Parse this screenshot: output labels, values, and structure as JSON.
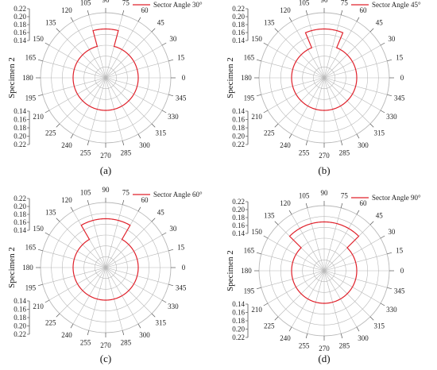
{
  "chart_data": [
    {
      "type": "polar-line",
      "panel_label": "(a)",
      "side_label": "Specimen  2",
      "legend": "Sector Angle 30°",
      "angle_ticks": [
        "0",
        "15",
        "30",
        "45",
        "60",
        "75",
        "90",
        "105",
        "120",
        "135",
        "150",
        "165",
        "180",
        "195",
        "210",
        "225",
        "240",
        "255",
        "270",
        "285",
        "300",
        "315",
        "330",
        "345"
      ],
      "r_tick_labels": [
        "0.14",
        "0.16",
        "0.18",
        "0.20",
        "0.22"
      ],
      "r_range": [
        0.14,
        0.22
      ],
      "series": [
        {
          "color": "#e0202a",
          "points": [
            {
              "theta": 0,
              "r": 0.18
            },
            {
              "theta": 75,
              "r": 0.18
            },
            {
              "theta": 75,
              "r": 0.2
            },
            {
              "theta": 105,
              "r": 0.2
            },
            {
              "theta": 105,
              "r": 0.18
            },
            {
              "theta": 360,
              "r": 0.18
            }
          ]
        }
      ]
    },
    {
      "type": "polar-line",
      "panel_label": "(b)",
      "side_label": "Specimen  2",
      "legend": "Sector Angle 45°",
      "angle_ticks": [
        "0",
        "15",
        "30",
        "45",
        "60",
        "75",
        "90",
        "105",
        "120",
        "135",
        "150",
        "165",
        "180",
        "195",
        "210",
        "225",
        "240",
        "255",
        "270",
        "285",
        "300",
        "315",
        "330",
        "345"
      ],
      "r_tick_labels": [
        "0.14",
        "0.16",
        "0.18",
        "0.20",
        "0.22"
      ],
      "r_range": [
        0.14,
        0.22
      ],
      "series": [
        {
          "color": "#e0202a",
          "points": [
            {
              "theta": 0,
              "r": 0.18
            },
            {
              "theta": 67.5,
              "r": 0.18
            },
            {
              "theta": 67.5,
              "r": 0.2
            },
            {
              "theta": 112.5,
              "r": 0.2
            },
            {
              "theta": 112.5,
              "r": 0.18
            },
            {
              "theta": 360,
              "r": 0.18
            }
          ]
        }
      ]
    },
    {
      "type": "polar-line",
      "panel_label": "(c)",
      "side_label": "Specimen  2",
      "legend": "Sector Angle 60°",
      "angle_ticks": [
        "0",
        "15",
        "30",
        "45",
        "60",
        "75",
        "90",
        "105",
        "120",
        "135",
        "150",
        "165",
        "180",
        "195",
        "210",
        "225",
        "240",
        "255",
        "270",
        "285",
        "300",
        "315",
        "330",
        "345"
      ],
      "r_tick_labels": [
        "0.14",
        "0.16",
        "0.18",
        "0.20",
        "0.22"
      ],
      "r_range": [
        0.14,
        0.22
      ],
      "series": [
        {
          "color": "#e0202a",
          "points": [
            {
              "theta": 0,
              "r": 0.18
            },
            {
              "theta": 60,
              "r": 0.18
            },
            {
              "theta": 60,
              "r": 0.2
            },
            {
              "theta": 120,
              "r": 0.2
            },
            {
              "theta": 120,
              "r": 0.18
            },
            {
              "theta": 360,
              "r": 0.18
            }
          ]
        }
      ]
    },
    {
      "type": "polar-line",
      "panel_label": "(d)",
      "side_label": "Specimen  2",
      "legend": "Sector Angle 90°",
      "angle_ticks": [
        "0",
        "15",
        "30",
        "45",
        "60",
        "75",
        "90",
        "105",
        "120",
        "135",
        "150",
        "165",
        "180",
        "195",
        "210",
        "225",
        "240",
        "255",
        "270",
        "285",
        "300",
        "315",
        "330",
        "345"
      ],
      "r_tick_labels": [
        "0.14",
        "0.16",
        "0.18",
        "0.20",
        "0.22"
      ],
      "r_range": [
        0.14,
        0.22
      ],
      "series": [
        {
          "color": "#e0202a",
          "points": [
            {
              "theta": 0,
              "r": 0.18
            },
            {
              "theta": 45,
              "r": 0.18
            },
            {
              "theta": 45,
              "r": 0.2
            },
            {
              "theta": 135,
              "r": 0.2
            },
            {
              "theta": 135,
              "r": 0.18
            },
            {
              "theta": 360,
              "r": 0.18
            }
          ]
        }
      ]
    }
  ],
  "colors": {
    "data_line": "#e0202a",
    "grid": "#b8b8b8",
    "axis": "#555555"
  }
}
